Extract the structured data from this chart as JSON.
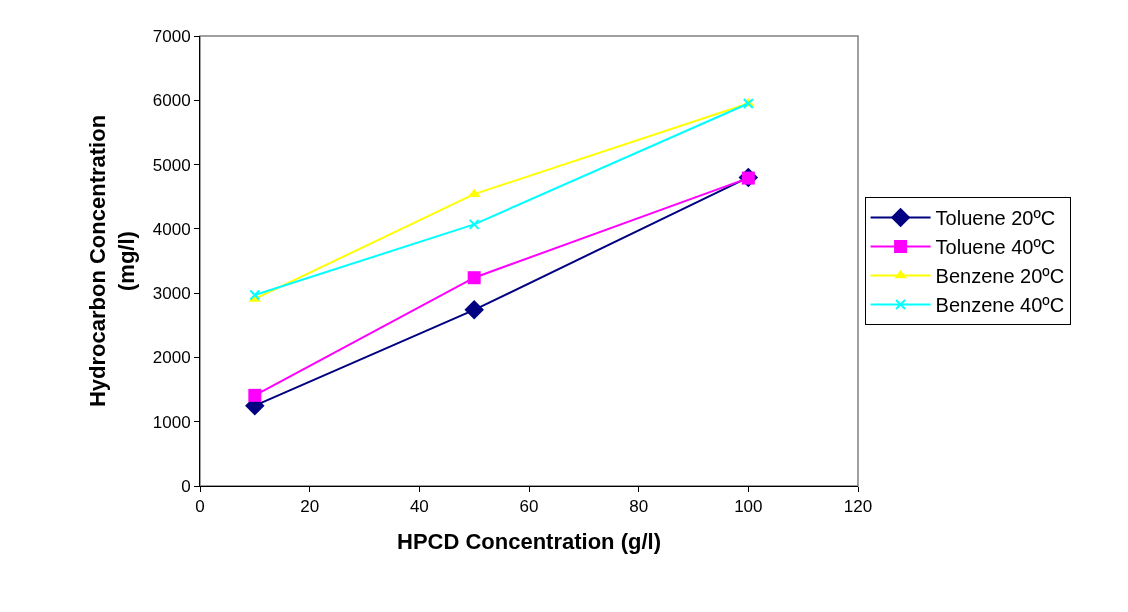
{
  "chart_data": {
    "type": "line",
    "xlabel": "HPCD Concentration (g/l)",
    "ylabel": "Hydrocarbon Concentration (mg/l)",
    "x": [
      10,
      50,
      100
    ],
    "series": [
      {
        "name": "Toluene 20ºC",
        "color": "#000080",
        "marker": "diamond",
        "values": [
          1250,
          2740,
          4800
        ]
      },
      {
        "name": "Toluene 40ºC",
        "color": "#ff00ff",
        "marker": "square",
        "values": [
          1410,
          3240,
          4790
        ]
      },
      {
        "name": "Benzene 20ºC",
        "color": "#ffff00",
        "marker": "triangle",
        "values": [
          2910,
          4540,
          5950
        ]
      },
      {
        "name": "Benzene 40ºC",
        "color": "#00ffff",
        "marker": "cross",
        "values": [
          2970,
          4070,
          5950
        ]
      }
    ],
    "xlim": [
      0,
      120
    ],
    "xticks": [
      0,
      20,
      40,
      60,
      80,
      100,
      120
    ],
    "ylim": [
      0,
      7000
    ],
    "yticks": [
      0,
      1000,
      2000,
      3000,
      4000,
      5000,
      6000,
      7000
    ],
    "grid": false,
    "legend": "right",
    "line_style": "solid"
  }
}
